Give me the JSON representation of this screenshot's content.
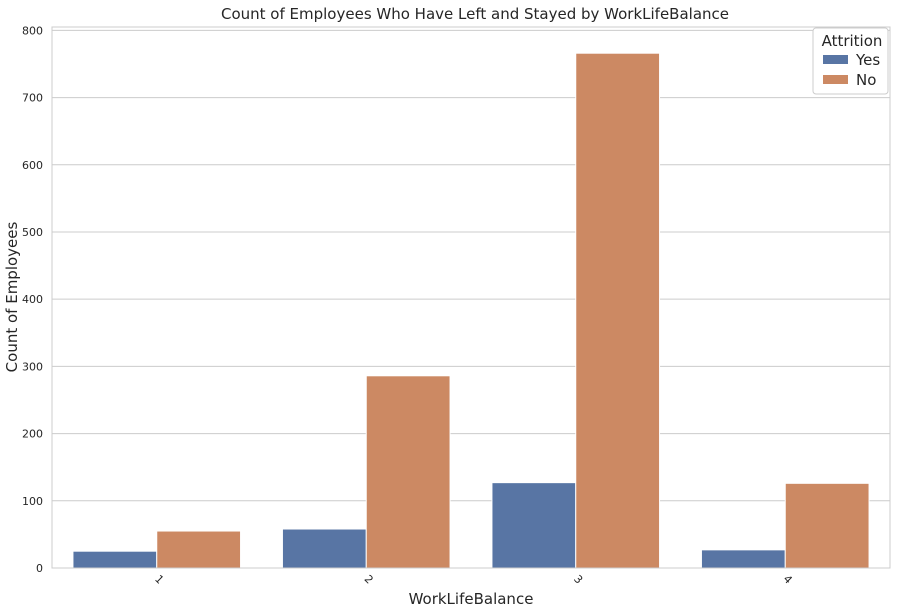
{
  "chart_data": {
    "type": "bar",
    "title": "Count of Employees Who Have Left and Stayed by WorkLifeBalance",
    "xlabel": "WorkLifeBalance",
    "ylabel": "Count of Employees",
    "categories": [
      "1",
      "2",
      "3",
      "4"
    ],
    "series": [
      {
        "name": "Yes",
        "color": "#5875a4",
        "values": [
          25,
          58,
          127,
          27
        ]
      },
      {
        "name": "No",
        "color": "#cc8963",
        "values": [
          55,
          286,
          766,
          126
        ]
      }
    ],
    "ylim": [
      0,
      805
    ],
    "yticks": [
      "0",
      "100",
      "200",
      "300",
      "400",
      "500",
      "600",
      "700",
      "800"
    ],
    "grid": true,
    "legend": {
      "title": "Attrition",
      "position": "top-right"
    }
  }
}
